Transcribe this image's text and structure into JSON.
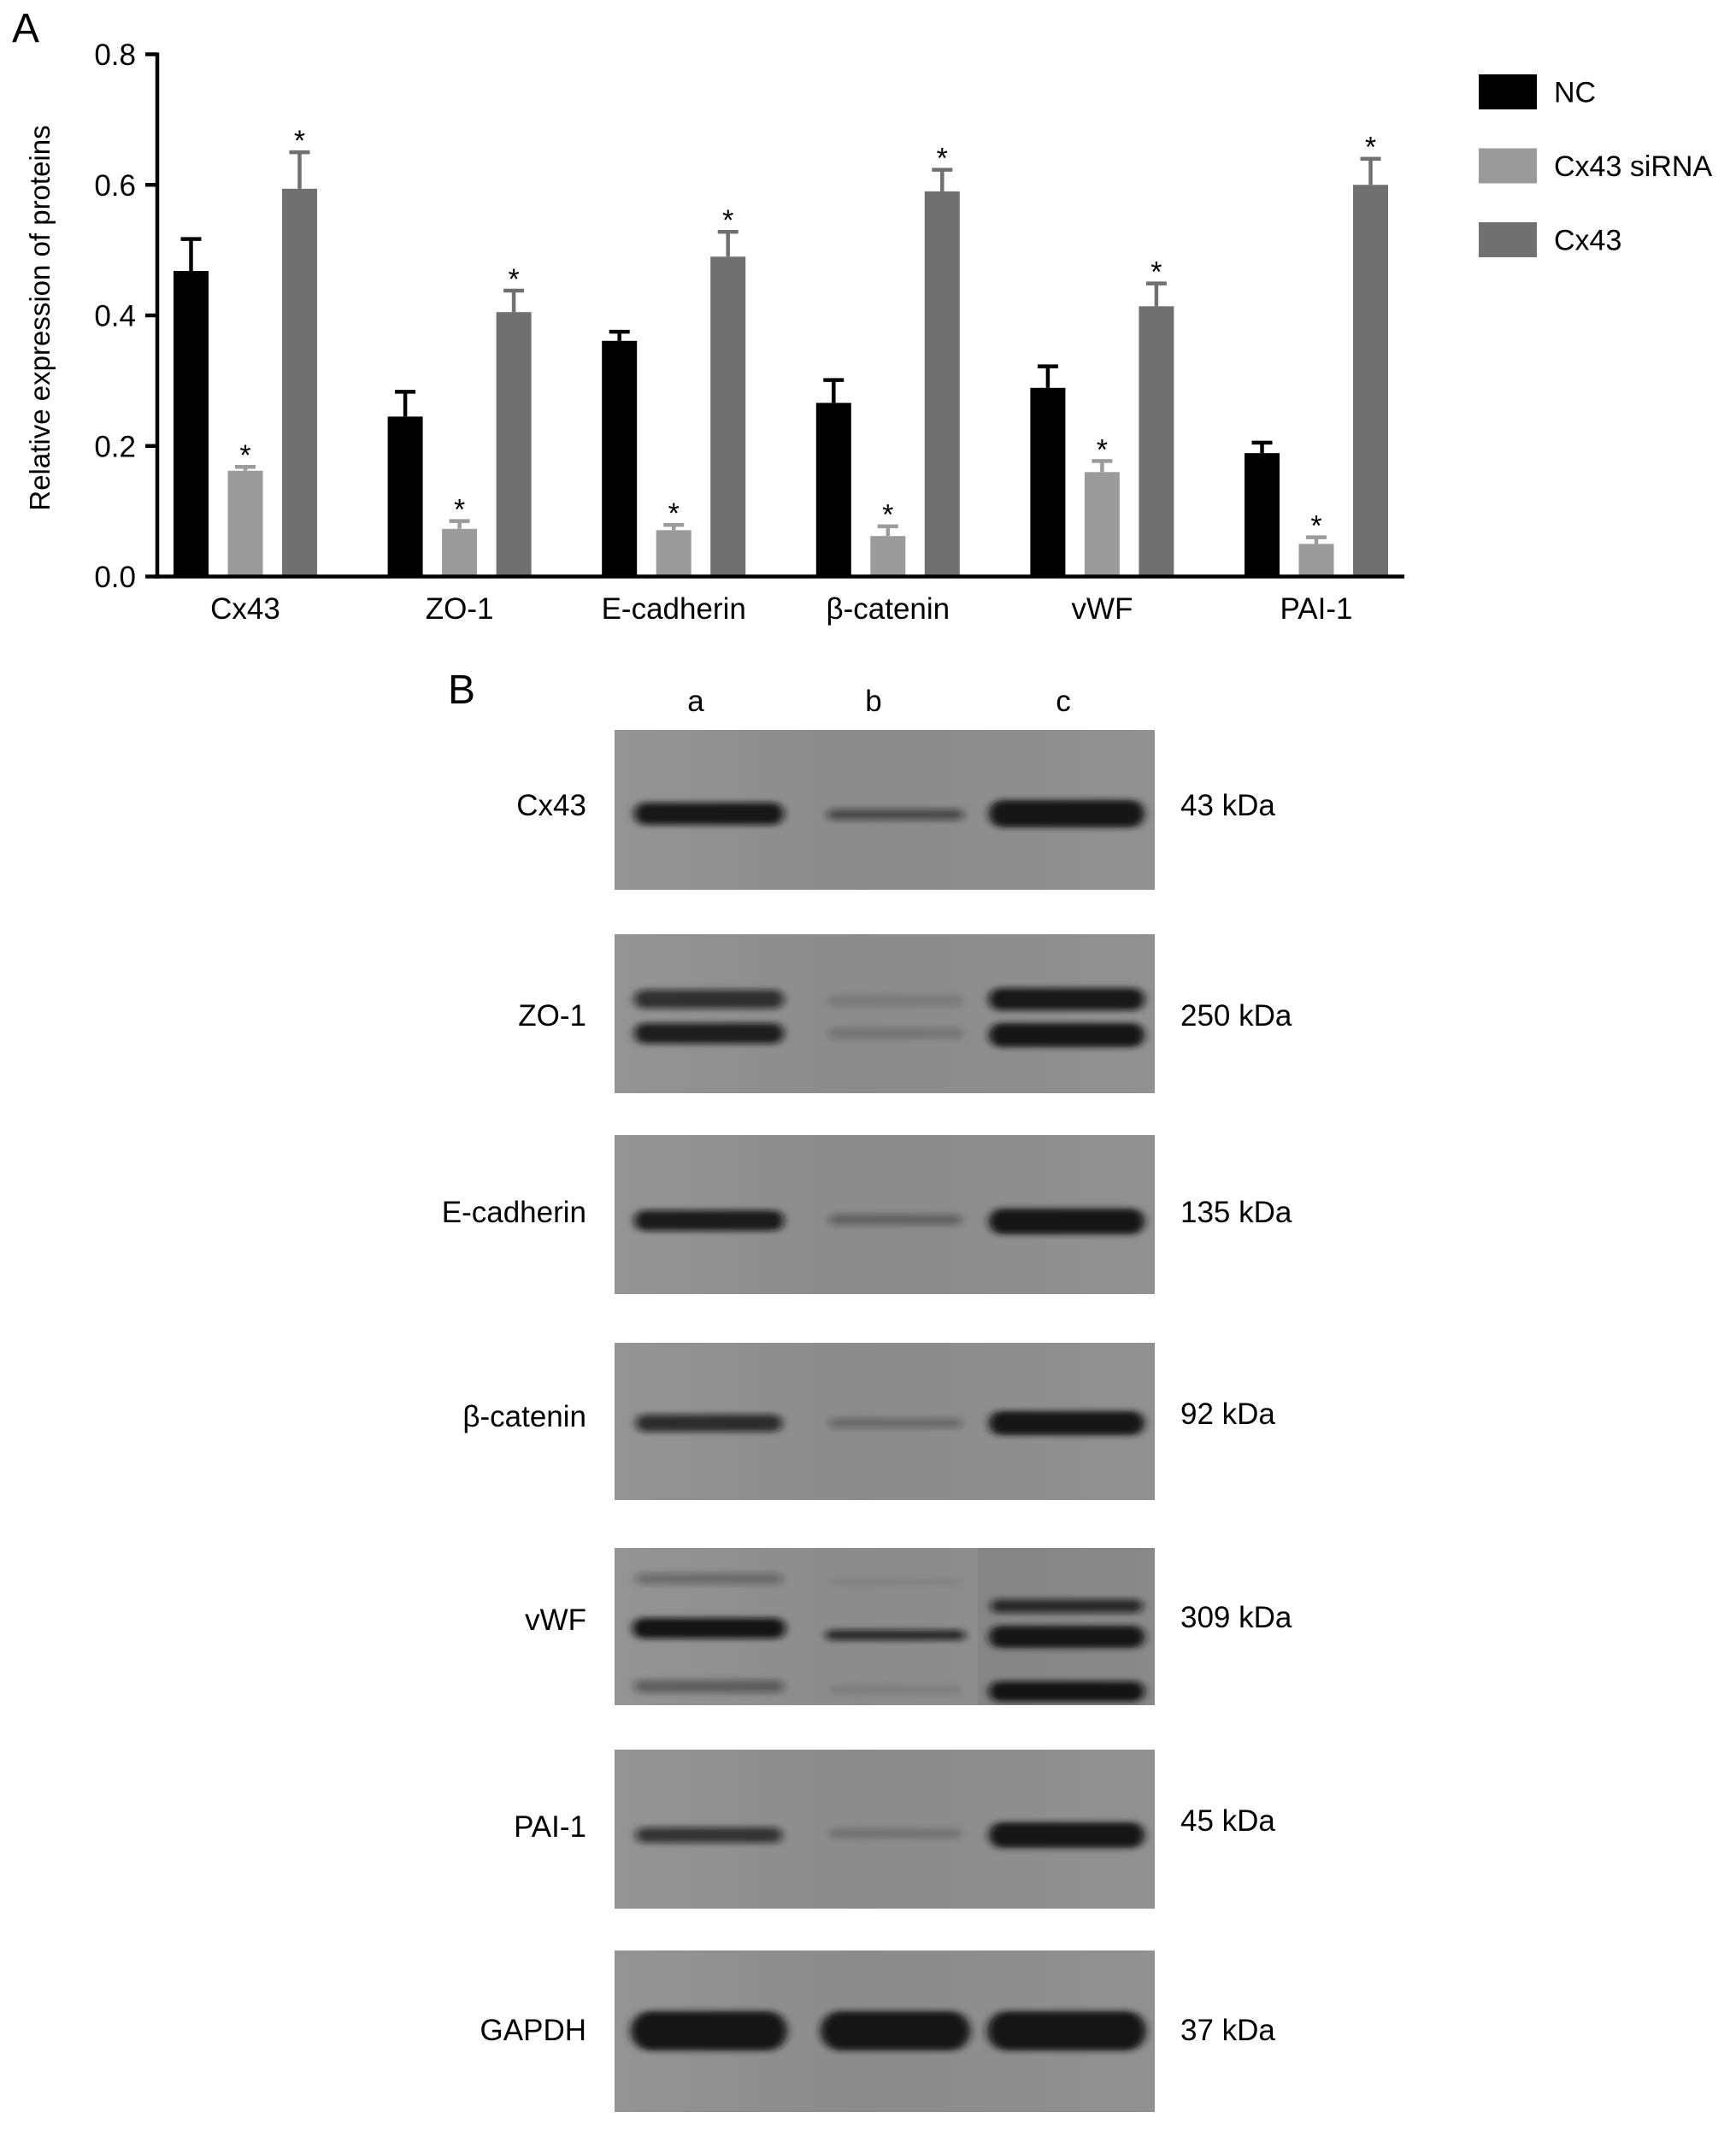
{
  "panels": {
    "a_label": "A",
    "b_label": "B"
  },
  "chart_data": {
    "type": "bar",
    "ylabel": "Relative expression of proteins",
    "categories": [
      "Cx43",
      "ZO-1",
      "E-cadherin",
      "β-catenin",
      "vWF",
      "PAI-1"
    ],
    "ylim": [
      0,
      0.8
    ],
    "yticks": [
      "0.0",
      "0.2",
      "0.4",
      "0.6",
      "0.8"
    ],
    "grid": false,
    "legend_position": "top-right",
    "error_bars": "upper",
    "series": [
      {
        "name": "NC",
        "color": "#000000",
        "values": [
          0.468,
          0.245,
          0.361,
          0.266,
          0.289,
          0.189
        ],
        "errors": [
          0.049,
          0.038,
          0.014,
          0.035,
          0.033,
          0.016
        ]
      },
      {
        "name": "Cx43 siRNA",
        "color": "#9b9b9b",
        "values": [
          0.162,
          0.073,
          0.071,
          0.062,
          0.16,
          0.05
        ],
        "errors": [
          0.006,
          0.012,
          0.008,
          0.015,
          0.017,
          0.01
        ],
        "marks": [
          "*",
          "*",
          "*",
          "*",
          "*",
          "*"
        ]
      },
      {
        "name": "Cx43",
        "color": "#707070",
        "values": [
          0.594,
          0.405,
          0.49,
          0.59,
          0.414,
          0.6
        ],
        "errors": [
          0.056,
          0.033,
          0.038,
          0.033,
          0.035,
          0.04
        ],
        "marks": [
          "*",
          "*",
          "*",
          "*",
          "*",
          "*"
        ]
      }
    ]
  },
  "blot": {
    "lanes": [
      "a",
      "b",
      "c"
    ],
    "rows": [
      {
        "protein": "Cx43",
        "size": "43 kDa"
      },
      {
        "protein": "ZO-1",
        "size": "250 kDa"
      },
      {
        "protein": "E-cadherin",
        "size": "135 kDa"
      },
      {
        "protein": "β-catenin",
        "size": "92 kDa"
      },
      {
        "protein": "vWF",
        "size": "309 kDa"
      },
      {
        "protein": "PAI-1",
        "size": "45 kDa"
      },
      {
        "protein": "GAPDH",
        "size": "37 kDa"
      }
    ]
  }
}
